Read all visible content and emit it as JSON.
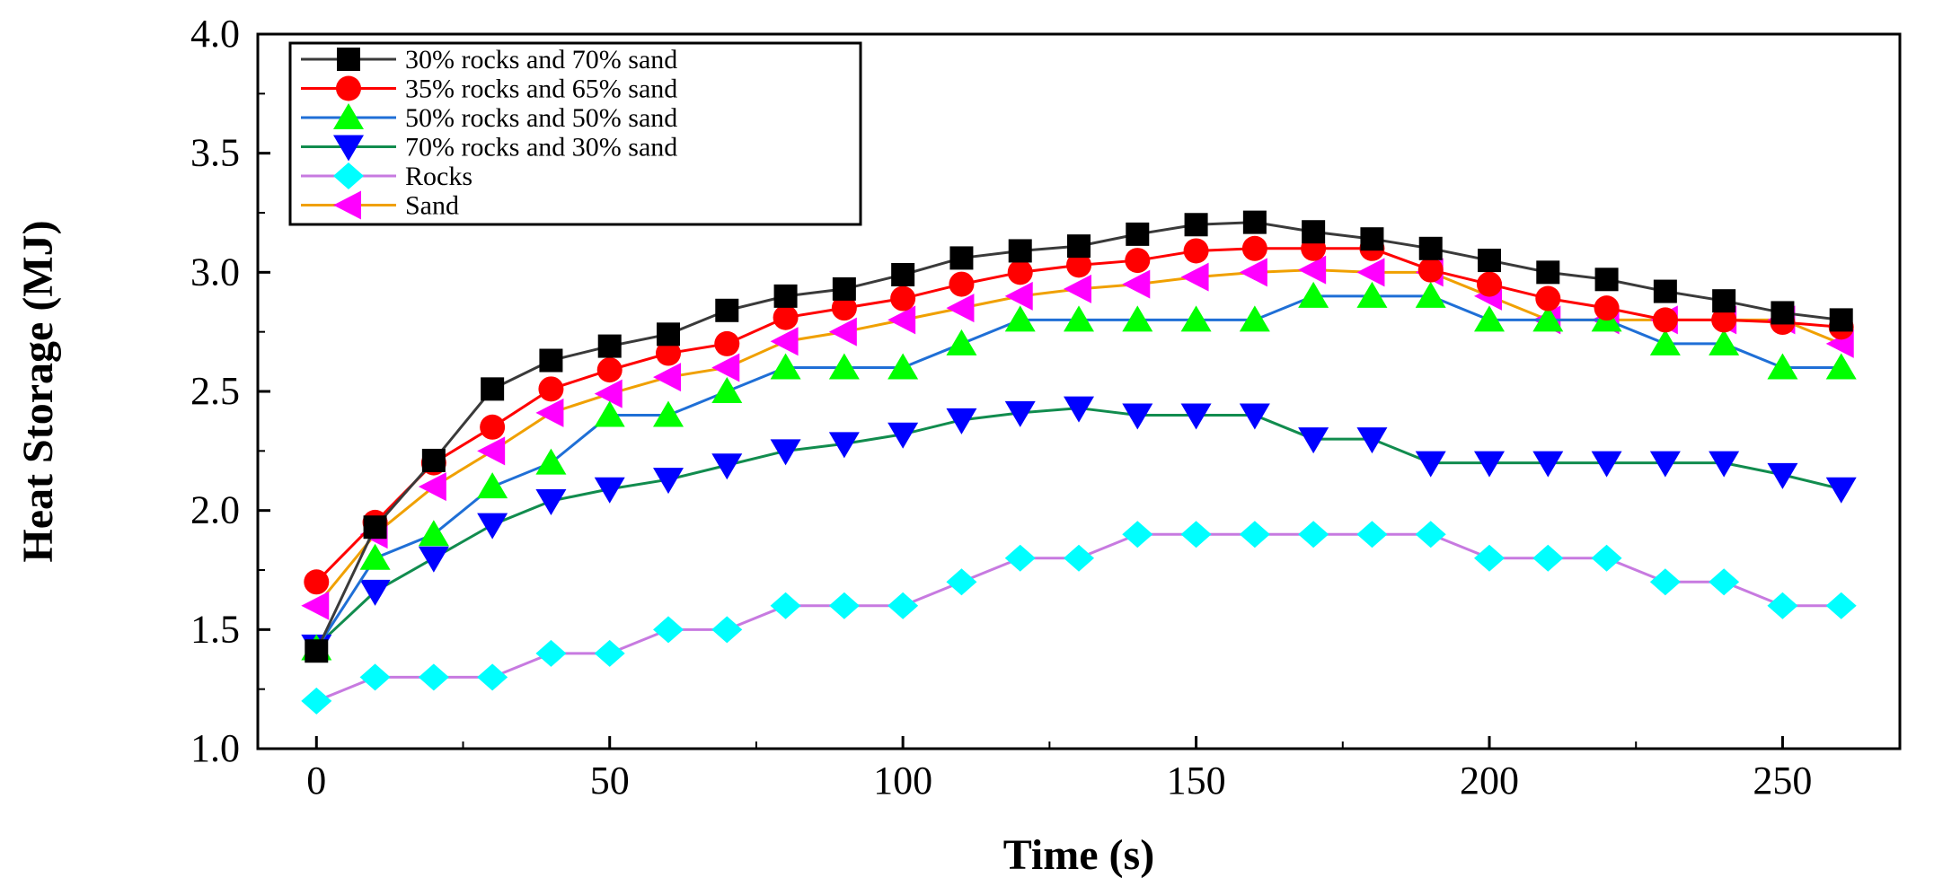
{
  "chart_data": {
    "type": "line",
    "title": "",
    "xlabel": "Time (s)",
    "ylabel": "Heat Storage (MJ)",
    "xlim": [
      -10,
      270
    ],
    "ylim": [
      1.0,
      4.0
    ],
    "xticks": [
      0,
      50,
      100,
      150,
      200,
      250
    ],
    "xtick_labels": [
      "0",
      "50",
      "100",
      "150",
      "200",
      "250"
    ],
    "yticks": [
      1.0,
      1.5,
      2.0,
      2.5,
      3.0,
      3.5,
      4.0
    ],
    "ytick_labels": [
      "1.0",
      "1.5",
      "2.0",
      "2.5",
      "3.0",
      "3.5",
      "4.0"
    ],
    "grid": false,
    "legend_position": "top-left",
    "x": [
      0,
      10,
      20,
      30,
      40,
      50,
      60,
      70,
      80,
      90,
      100,
      110,
      120,
      130,
      140,
      150,
      160,
      170,
      180,
      190,
      200,
      210,
      220,
      230,
      240,
      250,
      260
    ],
    "series": [
      {
        "name": "30% rocks and 70% sand",
        "line_color": "#3a3a3a",
        "marker_color": "#000000",
        "marker": "square",
        "values": [
          1.41,
          1.93,
          2.21,
          2.51,
          2.63,
          2.69,
          2.74,
          2.84,
          2.9,
          2.93,
          2.99,
          3.06,
          3.09,
          3.11,
          3.16,
          3.2,
          3.21,
          3.17,
          3.14,
          3.1,
          3.05,
          3.0,
          2.97,
          2.92,
          2.88,
          2.83,
          2.8
        ]
      },
      {
        "name": "35% rocks and 65% sand",
        "line_color": "#ff0000",
        "marker_color": "#ff0000",
        "marker": "circle",
        "values": [
          1.7,
          1.95,
          2.2,
          2.35,
          2.51,
          2.59,
          2.66,
          2.7,
          2.81,
          2.85,
          2.89,
          2.95,
          3.0,
          3.03,
          3.05,
          3.09,
          3.1,
          3.1,
          3.1,
          3.01,
          2.95,
          2.89,
          2.85,
          2.8,
          2.8,
          2.79,
          2.77
        ]
      },
      {
        "name": "50% rocks and 50% sand",
        "line_color": "#1f6fd6",
        "marker_color": "#00ff00",
        "marker": "triangle-up",
        "values": [
          1.42,
          1.8,
          1.9,
          2.1,
          2.2,
          2.4,
          2.4,
          2.5,
          2.6,
          2.6,
          2.6,
          2.7,
          2.8,
          2.8,
          2.8,
          2.8,
          2.8,
          2.9,
          2.9,
          2.9,
          2.8,
          2.8,
          2.8,
          2.7,
          2.7,
          2.6,
          2.6
        ]
      },
      {
        "name": "70% rocks and 30% sand",
        "line_color": "#118c4e",
        "marker_color": "#0000ff",
        "marker": "triangle-down",
        "values": [
          1.43,
          1.66,
          1.8,
          1.94,
          2.04,
          2.09,
          2.13,
          2.19,
          2.25,
          2.28,
          2.32,
          2.38,
          2.41,
          2.43,
          2.4,
          2.4,
          2.4,
          2.3,
          2.3,
          2.2,
          2.2,
          2.2,
          2.2,
          2.2,
          2.2,
          2.15,
          2.09
        ]
      },
      {
        "name": "Rocks",
        "line_color": "#c77ae0",
        "marker_color": "#00ffff",
        "marker": "diamond",
        "values": [
          1.2,
          1.3,
          1.3,
          1.3,
          1.4,
          1.4,
          1.5,
          1.5,
          1.6,
          1.6,
          1.6,
          1.7,
          1.8,
          1.8,
          1.9,
          1.9,
          1.9,
          1.9,
          1.9,
          1.9,
          1.8,
          1.8,
          1.8,
          1.7,
          1.7,
          1.6,
          1.6
        ]
      },
      {
        "name": "Sand",
        "line_color": "#f0a000",
        "marker_color": "#ff00ff",
        "marker": "triangle-left",
        "values": [
          1.6,
          1.9,
          2.1,
          2.25,
          2.41,
          2.49,
          2.56,
          2.6,
          2.71,
          2.75,
          2.8,
          2.85,
          2.9,
          2.93,
          2.95,
          2.98,
          3.0,
          3.01,
          3.0,
          3.0,
          2.9,
          2.8,
          2.8,
          2.8,
          2.8,
          2.8,
          2.7
        ]
      }
    ]
  }
}
